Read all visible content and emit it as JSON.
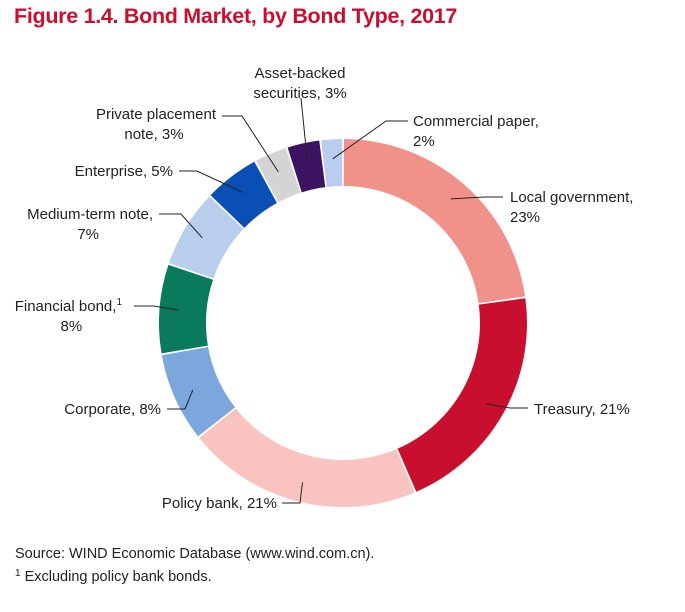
{
  "title": "Figure 1.4. Bond Market, by Bond Type, 2017",
  "source": "Source: WIND Economic Database (www.wind.com.cn).",
  "footnote": {
    "marker": "1",
    "text": "Excluding policy bank bonds."
  },
  "chart_data": {
    "type": "pie",
    "variant": "donut",
    "title": "Figure 1.4. Bond Market, by Bond Type, 2017",
    "unit": "%",
    "slices": [
      {
        "name": "Local government",
        "label_lines": [
          "Local government,",
          "23%"
        ],
        "value": 23,
        "color": "#f0928a"
      },
      {
        "name": "Treasury",
        "label_lines": [
          "Treasury, 21%"
        ],
        "value": 21,
        "color": "#c8102e"
      },
      {
        "name": "Policy bank",
        "label_lines": [
          "Policy bank, 21%"
        ],
        "value": 21,
        "color": "#f9c3bf"
      },
      {
        "name": "Corporate",
        "label_lines": [
          "Corporate, 8%"
        ],
        "value": 8,
        "color": "#7ba7dc"
      },
      {
        "name": "Financial bond",
        "label_lines": [
          "Financial bond,",
          "8%"
        ],
        "superscript": "1",
        "value": 8,
        "color": "#0a7a5c"
      },
      {
        "name": "Medium-term note",
        "label_lines": [
          "Medium-term note,",
          "7%"
        ],
        "value": 7,
        "color": "#b9cdec"
      },
      {
        "name": "Enterprise",
        "label_lines": [
          "Enterprise, 5%"
        ],
        "value": 5,
        "color": "#0a4fb5"
      },
      {
        "name": "Private placement note",
        "label_lines": [
          "Private placement",
          "note, 3%"
        ],
        "value": 3,
        "color": "#d4d4d4"
      },
      {
        "name": "Asset-backed securities",
        "label_lines": [
          "Asset-backed",
          "securities, 3%"
        ],
        "value": 3,
        "color": "#3c1361"
      },
      {
        "name": "Commercial paper",
        "label_lines": [
          "Commercial paper,",
          "2%"
        ],
        "value": 2,
        "color": "#bacdee"
      }
    ]
  }
}
